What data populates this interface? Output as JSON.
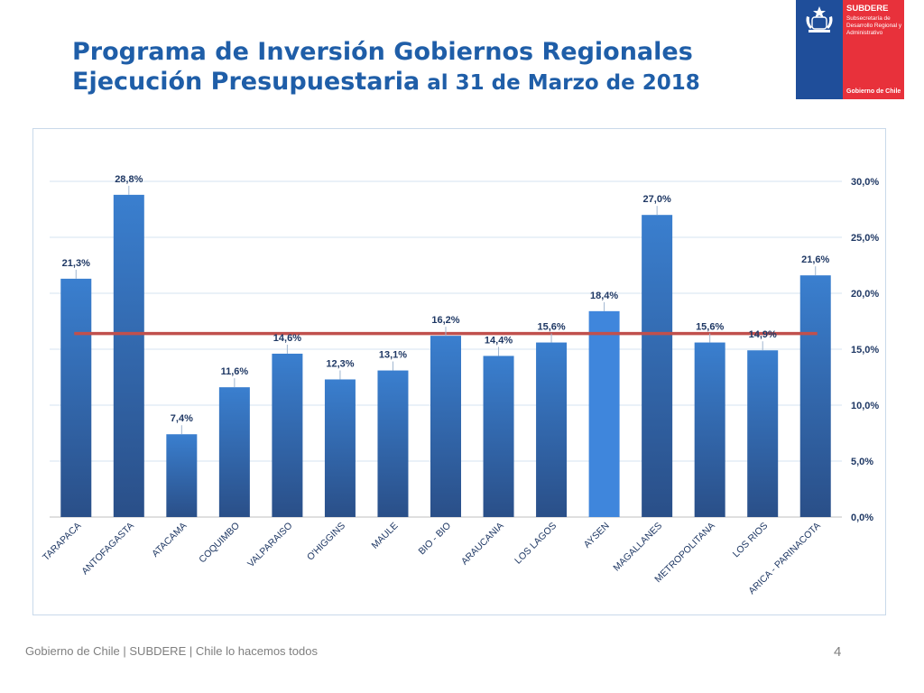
{
  "header": {
    "title_line1": "Programa de Inversión Gobiernos Regionales",
    "title_line2": "Ejecución Presupuestaria",
    "title_line2_rest": " al 31 de Marzo de 2018"
  },
  "logo": {
    "org": "SUBDERE",
    "subtitle": "Subsecretaría de Desarrollo Regional y Administrativo",
    "government": "Gobierno de Chile",
    "icon": "coat-of-arms-icon"
  },
  "footer": {
    "text": "Gobierno de Chile | SUBDERE | Chile lo hacemos todos",
    "page_number": "4"
  },
  "chart_data": {
    "type": "bar",
    "categories": [
      "TARAPACA",
      "ANTOFAGASTA",
      "ATACAMA",
      "COQUIMBO",
      "VALPARAISO",
      "O'HIGGINS",
      "MAULE",
      "BIO - BIO",
      "ARAUCANIA",
      "LOS LAGOS",
      "AYSEN",
      "MAGALLANES",
      "METROPOLITANA",
      "LOS RIOS",
      "ARICA - PARINACOTA"
    ],
    "values": [
      21.3,
      28.8,
      7.4,
      11.6,
      14.6,
      12.3,
      13.1,
      16.2,
      14.4,
      15.6,
      18.4,
      27.0,
      15.6,
      14.9,
      21.6
    ],
    "data_labels": [
      "21,3%",
      "28,8%",
      "7,4%",
      "11,6%",
      "14,6%",
      "12,3%",
      "13,1%",
      "16,2%",
      "14,4%",
      "15,6%",
      "18,4%",
      "27,0%",
      "15,6%",
      "14,9%",
      "21,6%"
    ],
    "reference_line_value": 16.4,
    "y_ticks": [
      0,
      5,
      10,
      15,
      20,
      25,
      30
    ],
    "y_tick_labels": [
      "0,0%",
      "5,0%",
      "10,0%",
      "15,0%",
      "20,0%",
      "25,0%",
      "30,0%"
    ],
    "ylim": [
      0,
      30
    ],
    "y_axis_side": "right",
    "grid": true,
    "legend": "none",
    "colors": {
      "bar_top": "#3a7fcf",
      "bar_bottom": "#2a4f88",
      "highlight_bar": "#3f86dc",
      "reference_line": "#c0504d",
      "title": "#1f5ea8",
      "data_label": "#1f3864"
    }
  }
}
